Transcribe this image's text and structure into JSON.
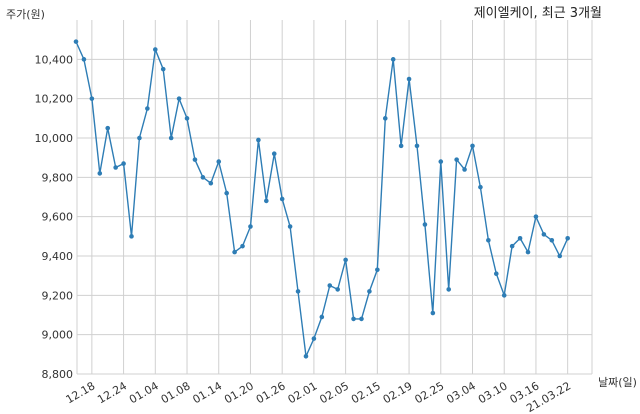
{
  "chart_data": {
    "type": "line",
    "title": "제이엘케이, 최근 3개월",
    "xlabel": "날짜(일)",
    "ylabel": "주가(원)",
    "ylim": [
      8800,
      10600
    ],
    "yticks": [
      8800,
      9000,
      9200,
      9400,
      9600,
      9800,
      10000,
      10200,
      10400
    ],
    "ytick_labels": [
      "8,800",
      "9,000",
      "9,200",
      "9,400",
      "9,600",
      "9,800",
      "10,000",
      "10,200",
      "10,400"
    ],
    "xtick_labels": [
      "12.18",
      "12.24",
      "01.04",
      "01.08",
      "01.14",
      "01.20",
      "01.26",
      "02.01",
      "02.05",
      "02.15",
      "02.19",
      "02.25",
      "03.04",
      "03.10",
      "03.16",
      "21.03.22"
    ],
    "xtick_index": [
      2,
      6,
      10,
      14,
      18,
      22,
      26,
      30,
      34,
      38,
      42,
      46,
      50,
      54,
      58,
      62
    ],
    "grid": true,
    "color": "#2e7db5",
    "series": [
      {
        "values": [
          10490,
          10400,
          10200,
          9820,
          10050,
          9850,
          9870,
          9500,
          10000,
          10150,
          10450,
          10350,
          10000,
          10200,
          10100,
          9890,
          9800,
          9770,
          9880,
          9720,
          9420,
          9450,
          9550,
          9990,
          9680,
          9920,
          9690,
          9550,
          9220,
          8890,
          8980,
          9090,
          9250,
          9230,
          9380,
          9080,
          9080,
          9220,
          9330,
          10100,
          10400,
          9960,
          10300,
          9960,
          9560,
          9110,
          9880,
          9230,
          9890,
          9840,
          9960,
          9750,
          9480,
          9310,
          9200,
          9450,
          9490,
          9420,
          9600,
          9510,
          9480,
          9400,
          9490
        ]
      }
    ]
  }
}
